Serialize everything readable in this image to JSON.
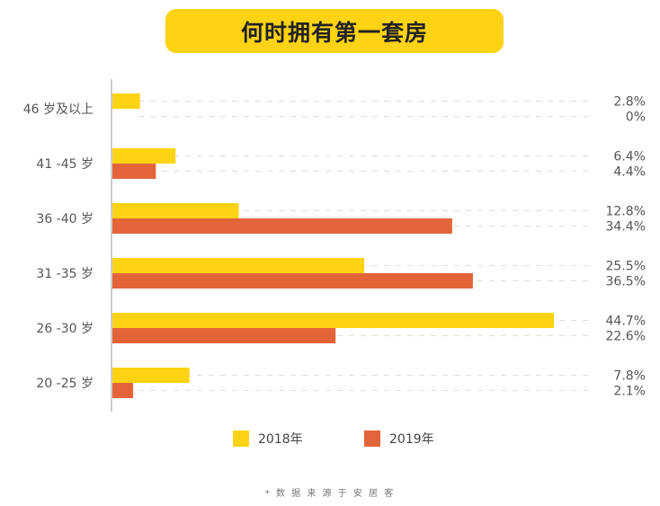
{
  "title": "何时拥有第一套房",
  "source_note": "* 数 据 来 源 于 安 居 客",
  "colors": {
    "title_bg": "#fdd313",
    "series_2018": "#fdd313",
    "series_2019": "#e4643a",
    "axis": "#bbbbbb",
    "grid": "#dddddd"
  },
  "chart_data": {
    "type": "bar",
    "orientation": "horizontal",
    "categories": [
      "46 岁及以上",
      "41 -45 岁",
      "36 -40 岁",
      "31 -35 岁",
      "26 -30 岁",
      "20 -25 岁"
    ],
    "series": [
      {
        "name": "2018年",
        "values": [
          2.8,
          6.4,
          12.8,
          25.5,
          44.7,
          7.8
        ],
        "labels": [
          "2.8%",
          "6.4%",
          "12.8%",
          "25.5%",
          "44.7%",
          "7.8%"
        ]
      },
      {
        "name": "2019年",
        "values": [
          0,
          4.4,
          34.4,
          36.5,
          22.6,
          2.1
        ],
        "labels": [
          "0%",
          "4.4%",
          "34.4%",
          "36.5%",
          "22.6%",
          "2.1%"
        ]
      }
    ],
    "unit": "%",
    "xlim": [
      0,
      50
    ],
    "grid": "dashed",
    "legend_position": "bottom"
  }
}
